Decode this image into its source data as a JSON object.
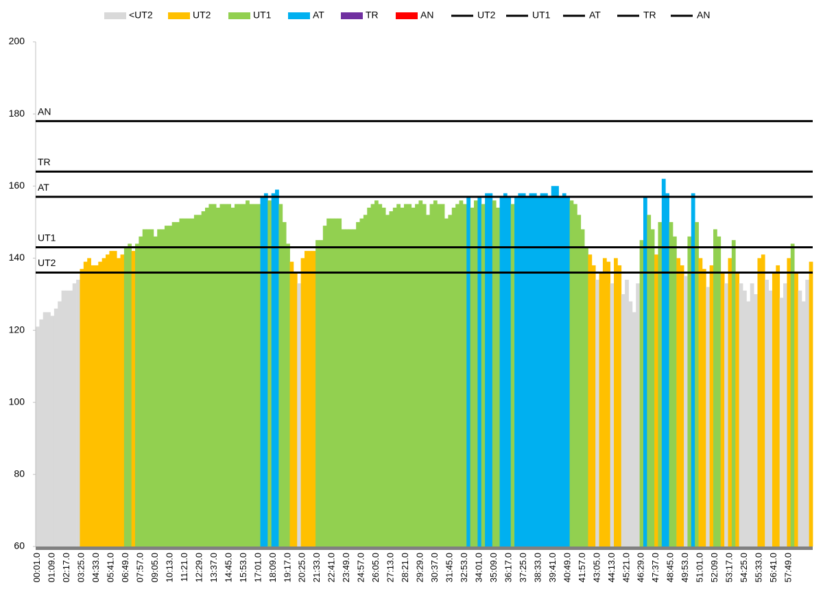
{
  "chart_data": {
    "type": "bar",
    "zones": [
      {
        "name": "<UT2",
        "color": "#d9d9d9"
      },
      {
        "name": "UT2",
        "color": "#ffc000"
      },
      {
        "name": "UT1",
        "color": "#92d050"
      },
      {
        "name": "AT",
        "color": "#00b0f0"
      },
      {
        "name": "TR",
        "color": "#7030a0"
      },
      {
        "name": "AN",
        "color": "#ff0000"
      }
    ],
    "lines": [
      {
        "name": "UT2",
        "color": "#000000",
        "value": 136
      },
      {
        "name": "UT1",
        "color": "#000000",
        "value": 143
      },
      {
        "name": "AT",
        "color": "#000000",
        "value": 157
      },
      {
        "name": "TR",
        "color": "#000000",
        "value": 164
      },
      {
        "name": "AN",
        "color": "#000000",
        "value": 178
      }
    ],
    "ylim": [
      60,
      200
    ],
    "yticks": [
      60,
      80,
      100,
      120,
      140,
      160,
      180,
      200
    ],
    "categories": [
      "00:01.0",
      null,
      null,
      null,
      "01:09.0",
      null,
      null,
      null,
      "02:17.0",
      null,
      null,
      null,
      "03:25.0",
      null,
      null,
      null,
      "04:33.0",
      null,
      null,
      null,
      "05:41.0",
      null,
      null,
      null,
      "06:49.0",
      null,
      null,
      null,
      "07:57.0",
      null,
      null,
      null,
      "09:05.0",
      null,
      null,
      null,
      "10:13.0",
      null,
      null,
      null,
      "11:21.0",
      null,
      null,
      null,
      "12:29.0",
      null,
      null,
      null,
      "13:37.0",
      null,
      null,
      null,
      "14:45.0",
      null,
      null,
      null,
      "15:53.0",
      null,
      null,
      null,
      "17:01.0",
      null,
      null,
      null,
      "18:09.0",
      null,
      null,
      null,
      "19:17.0",
      null,
      null,
      null,
      "20:25.0",
      null,
      null,
      null,
      "21:33.0",
      null,
      null,
      null,
      "22:41.0",
      null,
      null,
      null,
      "23:49.0",
      null,
      null,
      null,
      "24:57.0",
      null,
      null,
      null,
      "26:05.0",
      null,
      null,
      null,
      "27:13.0",
      null,
      null,
      null,
      "28:21.0",
      null,
      null,
      null,
      "29:29.0",
      null,
      null,
      null,
      "30:37.0",
      null,
      null,
      null,
      "31:45.0",
      null,
      null,
      null,
      "32:53.0",
      null,
      null,
      null,
      "34:01.0",
      null,
      null,
      null,
      "35:09.0",
      null,
      null,
      null,
      "36:17.0",
      null,
      null,
      null,
      "37:25.0",
      null,
      null,
      null,
      "38:33.0",
      null,
      null,
      null,
      "39:41.0",
      null,
      null,
      null,
      "40:49.0",
      null,
      null,
      null,
      "41:57.0",
      null,
      null,
      null,
      "43:05.0",
      null,
      null,
      null,
      "44:13.0",
      null,
      null,
      null,
      "45:21.0",
      null,
      null,
      null,
      "46:29.0",
      null,
      null,
      null,
      "47:37.0",
      null,
      null,
      null,
      "48:45.0",
      null,
      null,
      null,
      "49:53.0",
      null,
      null,
      null,
      "51:01.0",
      null,
      null,
      null,
      "52:09.0",
      null,
      null,
      null,
      "53:17.0",
      null,
      null,
      null,
      "54:25.0",
      null,
      null,
      null,
      "55:33.0",
      null,
      null,
      null,
      "56:41.0",
      null,
      null,
      null,
      "57:49.0",
      null,
      null,
      null,
      null,
      null,
      null
    ],
    "values": [
      121,
      123,
      125,
      125,
      124,
      126,
      128,
      131,
      131,
      131,
      133,
      134,
      137,
      139,
      140,
      138,
      138,
      139,
      140,
      141,
      142,
      142,
      140,
      141,
      143,
      144,
      142,
      144,
      146,
      148,
      148,
      148,
      146,
      148,
      148,
      149,
      149,
      150,
      150,
      151,
      151,
      151,
      151,
      152,
      152,
      153,
      154,
      155,
      155,
      154,
      155,
      155,
      155,
      154,
      155,
      155,
      155,
      156,
      155,
      155,
      155,
      157,
      158,
      156,
      158,
      159,
      155,
      150,
      144,
      139,
      136,
      133,
      140,
      142,
      142,
      142,
      145,
      145,
      149,
      151,
      151,
      151,
      151,
      148,
      148,
      148,
      148,
      150,
      151,
      152,
      154,
      155,
      156,
      155,
      154,
      152,
      153,
      154,
      155,
      154,
      155,
      155,
      154,
      155,
      156,
      155,
      152,
      155,
      156,
      155,
      155,
      151,
      152,
      154,
      155,
      156,
      155,
      157,
      154,
      156,
      157,
      155,
      158,
      158,
      156,
      154,
      157,
      158,
      157,
      155,
      157,
      158,
      158,
      157,
      158,
      158,
      157,
      158,
      158,
      157,
      160,
      160,
      157,
      158,
      157,
      156,
      155,
      152,
      148,
      143,
      141,
      138,
      134,
      136,
      140,
      139,
      133,
      140,
      138,
      130,
      134,
      128,
      125,
      133,
      145,
      157,
      152,
      148,
      141,
      150,
      162,
      158,
      150,
      146,
      140,
      138,
      135,
      146,
      158,
      150,
      140,
      137,
      132,
      138,
      148,
      146,
      136,
      133,
      140,
      145,
      136,
      133,
      131,
      128,
      133,
      130,
      140,
      141,
      134,
      131,
      136,
      138,
      129,
      133,
      140,
      144,
      136,
      131,
      128,
      134,
      139
    ]
  }
}
